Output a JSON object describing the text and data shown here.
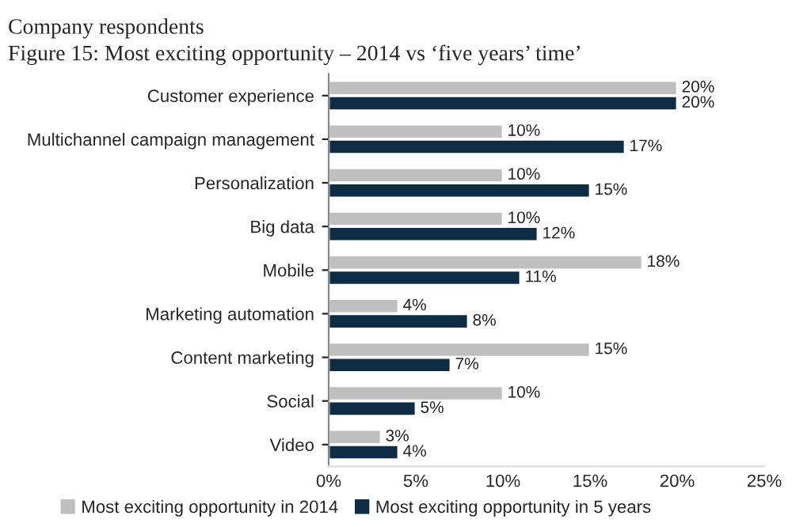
{
  "chart_data": {
    "type": "bar",
    "orientation": "horizontal",
    "subtitle": "Company respondents",
    "title": "Figure 15: Most exciting opportunity – 2014 vs ‘five years’ time’",
    "categories": [
      "Customer experience",
      "Multichannel campaign management",
      "Personalization",
      "Big data",
      "Mobile",
      "Marketing automation",
      "Content marketing",
      "Social",
      "Video"
    ],
    "series": [
      {
        "name": "Most exciting opportunity in 2014",
        "color": "#bfbfbf",
        "values": [
          20,
          10,
          10,
          10,
          18,
          4,
          15,
          10,
          3
        ],
        "value_labels": [
          "20%",
          "10%",
          "10%",
          "10%",
          "18%",
          "4%",
          "15%",
          "10%",
          "3%"
        ]
      },
      {
        "name": "Most exciting opportunity in 5 years",
        "color": "#0e2d45",
        "values": [
          20,
          17,
          15,
          12,
          11,
          8,
          7,
          5,
          4
        ],
        "value_labels": [
          "20%",
          "17%",
          "15%",
          "12%",
          "11%",
          "8%",
          "7%",
          "5%",
          "4%"
        ]
      }
    ],
    "xlim": [
      0,
      25
    ],
    "xticks": [
      {
        "value": 0,
        "label": "0%"
      },
      {
        "value": 5,
        "label": "5%"
      },
      {
        "value": 10,
        "label": "10%"
      },
      {
        "value": 15,
        "label": "15%"
      },
      {
        "value": 20,
        "label": "20%"
      },
      {
        "value": 25,
        "label": "25%"
      }
    ],
    "legend": "bottom",
    "grid": false
  }
}
